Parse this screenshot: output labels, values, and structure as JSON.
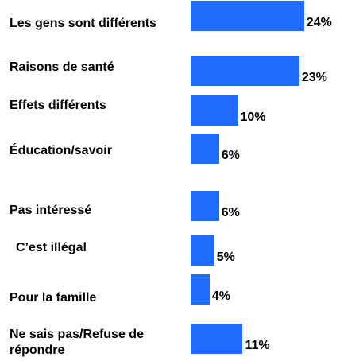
{
  "chart_data": {
    "type": "bar",
    "orientation": "horizontal",
    "categories": [
      "Les gens sont différents",
      "Raisons de santé",
      "Effets différents",
      "Éducation/savoir",
      "Pas intéressé",
      "C’est illégal",
      "Pour la famille",
      "Ne sais pas/Refuse de répondre"
    ],
    "values": [
      24,
      23,
      10,
      6,
      6,
      5,
      4,
      11
    ],
    "value_labels": [
      "24%",
      "23%",
      "10%",
      "6%",
      "6%",
      "5%",
      "4%",
      "11%"
    ],
    "color": "#1f6dff"
  }
}
